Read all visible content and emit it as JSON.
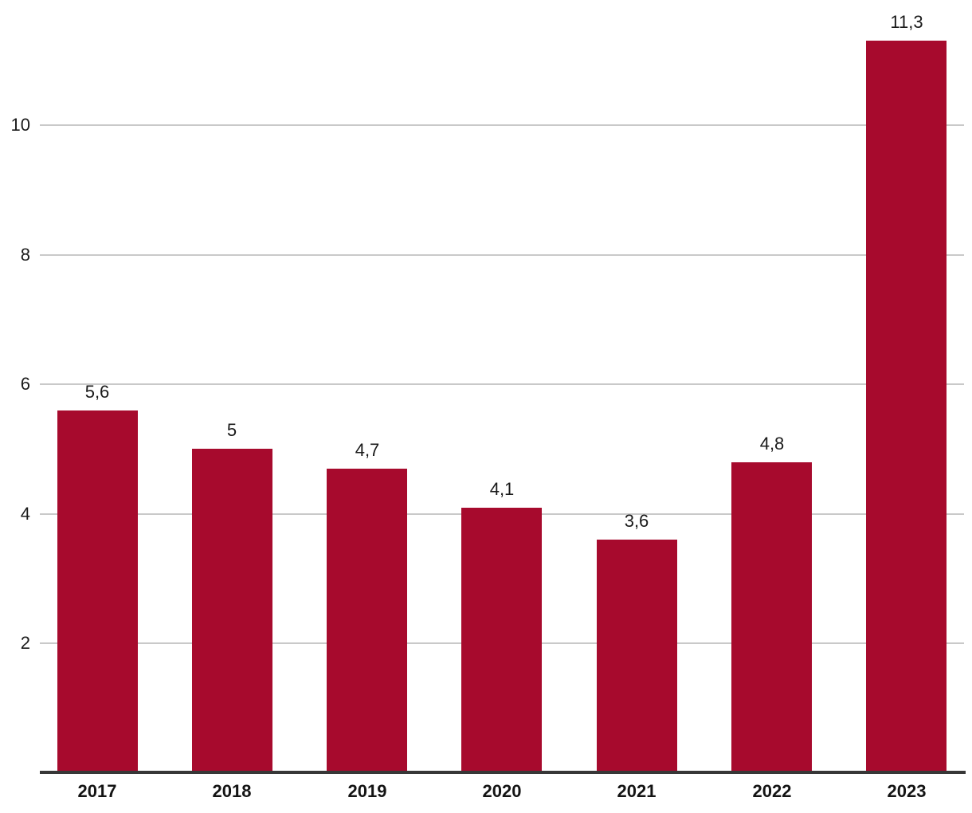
{
  "chart_data": {
    "type": "bar",
    "title": "",
    "xlabel": "",
    "ylabel": "",
    "categories": [
      "2017",
      "2018",
      "2019",
      "2020",
      "2021",
      "2022",
      "2023"
    ],
    "values": [
      5.6,
      5,
      4.7,
      4.1,
      3.6,
      4.8,
      11.3
    ],
    "value_labels": [
      "5,6",
      "5",
      "4,7",
      "4,1",
      "3,6",
      "4,8",
      "11,3"
    ],
    "y_ticks": [
      2,
      4,
      6,
      8,
      10
    ],
    "y_tick_labels": [
      "2",
      "4",
      "6",
      "8",
      "10"
    ],
    "ylim": [
      0,
      11.9
    ],
    "grid": true,
    "legend": false,
    "colors": {
      "bar": "#A70A2D",
      "gridline": "#C9C9C9",
      "axis_line": "#373737",
      "tick_label": "#1B1B1B",
      "value_label": "#1A1A1A",
      "category_label": "#141414",
      "background": "#FFFFFF"
    }
  }
}
